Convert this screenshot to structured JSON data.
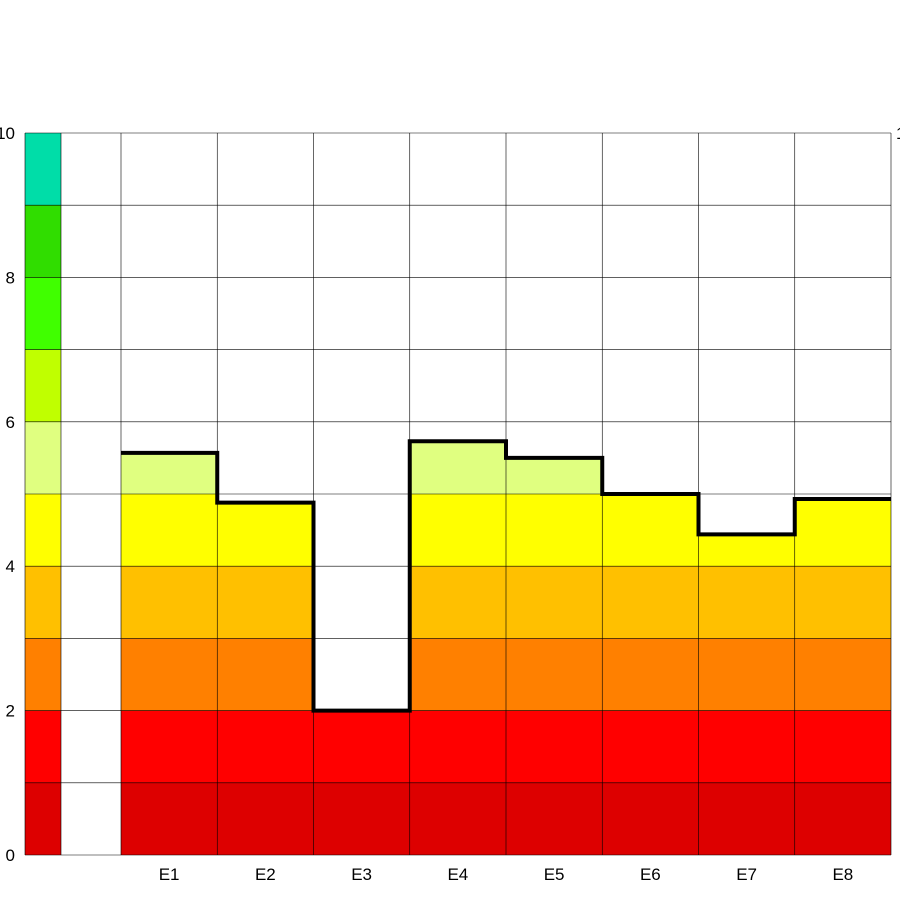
{
  "chart_data": {
    "type": "bar",
    "categories": [
      "E1",
      "E2",
      "E3",
      "E4",
      "E5",
      "E6",
      "E7",
      "E8"
    ],
    "values": [
      5.57,
      4.88,
      2.0,
      5.73,
      5.5,
      5.0,
      4.44,
      4.93
    ],
    "ylim": [
      0,
      10
    ],
    "y_ticks": [
      "0",
      "2",
      "4",
      "6",
      "8",
      "10"
    ],
    "right_tick_label": "1",
    "grid": true,
    "legend": "none",
    "color_bands": [
      {
        "from": 0,
        "to": 1,
        "color": "#dd0000"
      },
      {
        "from": 1,
        "to": 2,
        "color": "#ff0000"
      },
      {
        "from": 2,
        "to": 3,
        "color": "#ff8000"
      },
      {
        "from": 3,
        "to": 4,
        "color": "#ffc000"
      },
      {
        "from": 4,
        "to": 5,
        "color": "#ffff00"
      },
      {
        "from": 5,
        "to": 6,
        "color": "#e0ff80"
      },
      {
        "from": 6,
        "to": 7,
        "color": "#c0ff00"
      },
      {
        "from": 7,
        "to": 8,
        "color": "#40ff00"
      },
      {
        "from": 8,
        "to": 9,
        "color": "#30dd00"
      },
      {
        "from": 9,
        "to": 10,
        "color": "#00dda8"
      }
    ],
    "outline_color": "#000000",
    "grid_color": "#000000"
  }
}
